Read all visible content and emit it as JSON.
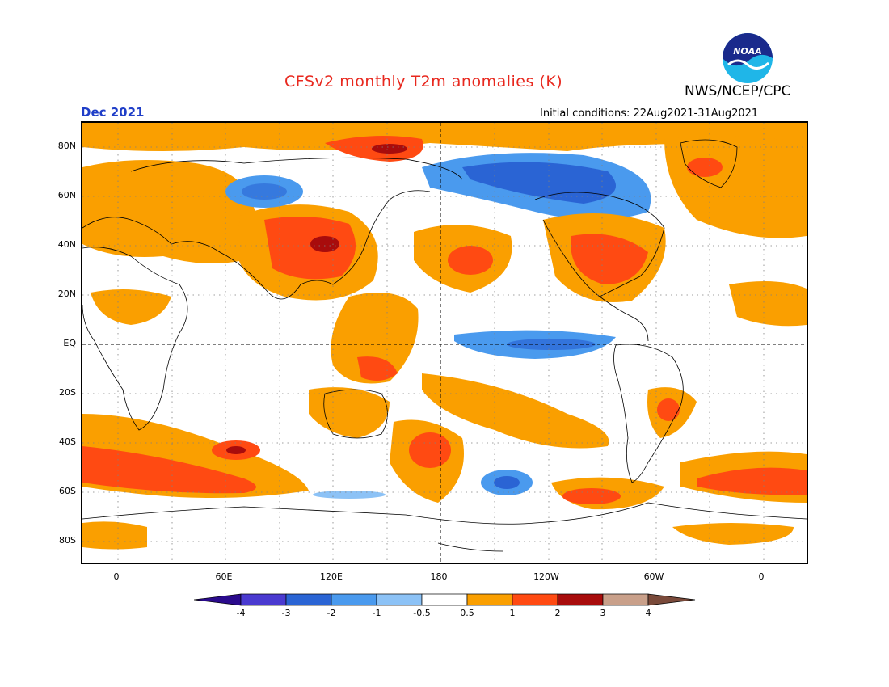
{
  "title": "CFSv2 monthly T2m anomalies (K)",
  "organization": "NWS/NCEP/CPC",
  "logo_text": "NOAA",
  "forecast_month": "Dec 2021",
  "initial_conditions": "Initial conditions: 22Aug2021-31Aug2021",
  "lat_labels": [
    "80N",
    "60N",
    "40N",
    "20N",
    "EQ",
    "20S",
    "40S",
    "60S",
    "80S"
  ],
  "lon_labels": [
    "0",
    "60E",
    "120E",
    "180",
    "120W",
    "60W",
    "0"
  ],
  "colorbar": {
    "labels": [
      "-4",
      "-3",
      "-2",
      "-1",
      "-0.5",
      "0.5",
      "1",
      "2",
      "3",
      "4"
    ],
    "colors": [
      "#2a0a8c",
      "#4a3ad0",
      "#2a64d4",
      "#4a9aee",
      "#8cc2f6",
      "#ffffff",
      "#fa9f00",
      "#ff4a12",
      "#a80c0c",
      "#c9a08a",
      "#7a4a3a"
    ]
  }
}
